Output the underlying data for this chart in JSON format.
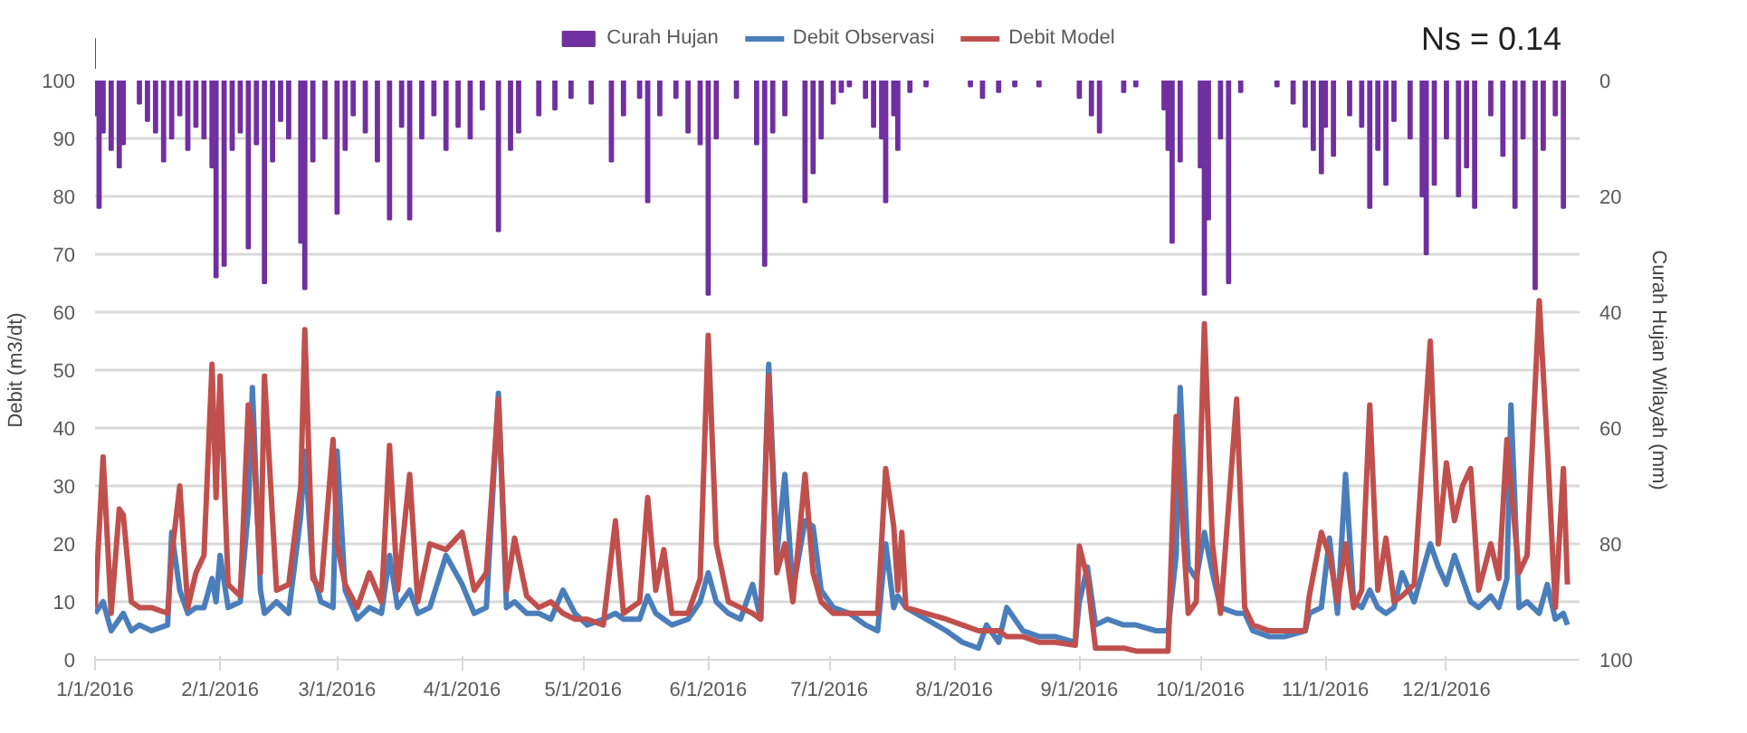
{
  "chart_data": {
    "type": "line",
    "ylabel": "Debit (m3/dt)",
    "y2label": "Curah Hujan Wilayah (mm)",
    "annotations": [
      "Ns = 0.14"
    ],
    "xlim": [
      "2016-01-01",
      "2017-01-03"
    ],
    "xticks": [
      {
        "value": "2016-01-01",
        "label": "1/1/2016"
      },
      {
        "value": "2016-02-01",
        "label": "2/1/2016"
      },
      {
        "value": "2016-03-01",
        "label": "3/1/2016"
      },
      {
        "value": "2016-04-01",
        "label": "4/1/2016"
      },
      {
        "value": "2016-05-01",
        "label": "5/1/2016"
      },
      {
        "value": "2016-06-01",
        "label": "6/1/2016"
      },
      {
        "value": "2016-07-01",
        "label": "7/1/2016"
      },
      {
        "value": "2016-08-01",
        "label": "8/1/2016"
      },
      {
        "value": "2016-09-01",
        "label": "9/1/2016"
      },
      {
        "value": "2016-10-01",
        "label": "10/1/2016"
      },
      {
        "value": "2016-11-01",
        "label": "11/1/2016"
      },
      {
        "value": "2016-12-01",
        "label": "12/1/2016"
      }
    ],
    "ylim": [
      0,
      100
    ],
    "yticks": [
      0,
      10,
      20,
      30,
      40,
      50,
      60,
      70,
      80,
      90,
      100
    ],
    "y2lim": [
      100,
      0
    ],
    "y2ticks": [
      0,
      20,
      40,
      60,
      80,
      100
    ],
    "grid": "y",
    "legend": "top",
    "series": [
      {
        "name": "Curah Hujan",
        "type": "bar",
        "axis": "y2",
        "color": "#7030a0",
        "x": [
          "2016-01-01",
          "2016-01-02",
          "2016-01-03",
          "2016-01-05",
          "2016-01-07",
          "2016-01-08",
          "2016-01-12",
          "2016-01-14",
          "2016-01-16",
          "2016-01-18",
          "2016-01-20",
          "2016-01-22",
          "2016-01-24",
          "2016-01-26",
          "2016-01-28",
          "2016-01-30",
          "2016-01-31",
          "2016-02-02",
          "2016-02-04",
          "2016-02-06",
          "2016-02-08",
          "2016-02-10",
          "2016-02-12",
          "2016-02-14",
          "2016-02-16",
          "2016-02-18",
          "2016-02-21",
          "2016-02-22",
          "2016-02-24",
          "2016-02-27",
          "2016-03-01",
          "2016-03-03",
          "2016-03-05",
          "2016-03-08",
          "2016-03-11",
          "2016-03-14",
          "2016-03-17",
          "2016-03-19",
          "2016-03-22",
          "2016-03-25",
          "2016-03-28",
          "2016-03-31",
          "2016-04-03",
          "2016-04-06",
          "2016-04-10",
          "2016-04-13",
          "2016-04-15",
          "2016-04-20",
          "2016-04-24",
          "2016-04-28",
          "2016-05-03",
          "2016-05-08",
          "2016-05-11",
          "2016-05-15",
          "2016-05-17",
          "2016-05-20",
          "2016-05-24",
          "2016-05-27",
          "2016-05-30",
          "2016-06-01",
          "2016-06-03",
          "2016-06-08",
          "2016-06-13",
          "2016-06-15",
          "2016-06-17",
          "2016-06-20",
          "2016-06-25",
          "2016-06-27",
          "2016-06-29",
          "2016-07-02",
          "2016-07-04",
          "2016-07-06",
          "2016-07-10",
          "2016-07-12",
          "2016-07-14",
          "2016-07-15",
          "2016-07-17",
          "2016-07-18",
          "2016-07-21",
          "2016-07-25",
          "2016-08-05",
          "2016-08-08",
          "2016-08-12",
          "2016-08-16",
          "2016-08-22",
          "2016-09-01",
          "2016-09-04",
          "2016-09-06",
          "2016-09-12",
          "2016-09-15",
          "2016-09-22",
          "2016-09-23",
          "2016-09-24",
          "2016-09-26",
          "2016-10-01",
          "2016-10-02",
          "2016-10-03",
          "2016-10-06",
          "2016-10-08",
          "2016-10-11",
          "2016-10-20",
          "2016-10-24",
          "2016-10-27",
          "2016-10-29",
          "2016-10-31",
          "2016-11-01",
          "2016-11-03",
          "2016-11-07",
          "2016-11-10",
          "2016-11-12",
          "2016-11-14",
          "2016-11-16",
          "2016-11-18",
          "2016-11-22",
          "2016-11-25",
          "2016-11-26",
          "2016-11-28",
          "2016-12-01",
          "2016-12-04",
          "2016-12-06",
          "2016-12-08",
          "2016-12-12",
          "2016-12-15",
          "2016-12-18",
          "2016-12-20",
          "2016-12-23",
          "2016-12-25",
          "2016-12-28",
          "2016-12-30"
        ],
        "values": [
          6,
          22,
          9,
          12,
          15,
          11,
          4,
          7,
          9,
          14,
          10,
          6,
          12,
          8,
          10,
          15,
          34,
          32,
          12,
          9,
          29,
          11,
          35,
          14,
          7,
          10,
          28,
          36,
          14,
          10,
          23,
          12,
          6,
          9,
          14,
          24,
          8,
          24,
          10,
          6,
          12,
          8,
          10,
          5,
          26,
          12,
          9,
          6,
          5,
          3,
          4,
          14,
          6,
          3,
          21,
          6,
          3,
          9,
          11,
          37,
          10,
          3,
          11,
          32,
          9,
          6,
          21,
          16,
          10,
          4,
          2,
          1,
          3,
          8,
          10,
          21,
          6,
          12,
          2,
          1,
          1,
          3,
          2,
          1,
          1,
          3,
          6,
          9,
          2,
          1,
          5,
          12,
          28,
          14,
          15,
          37,
          24,
          10,
          35,
          2,
          1,
          4,
          8,
          12,
          16,
          8,
          13,
          6,
          8,
          22,
          12,
          18,
          7,
          10,
          20,
          30,
          18,
          10,
          20,
          15,
          22,
          6,
          13,
          22,
          10,
          36,
          12,
          6,
          22
        ]
      },
      {
        "name": "Debit Observasi",
        "color": "#4a7ebb",
        "values": [
          8,
          10,
          5,
          7,
          8,
          5,
          6,
          5,
          6,
          22,
          12,
          8,
          9,
          9,
          14,
          10,
          18,
          9,
          10,
          26,
          47,
          12,
          8,
          10,
          8,
          25,
          36,
          15,
          10,
          9,
          36,
          12,
          7,
          9,
          8,
          18,
          9,
          12,
          8,
          9,
          18,
          13,
          8,
          9,
          46,
          9,
          10,
          8,
          8,
          7,
          12,
          8,
          6,
          7,
          8,
          7,
          7,
          11,
          8,
          7,
          6,
          7,
          10,
          15,
          10,
          8,
          7,
          13,
          7,
          51,
          18,
          32,
          12,
          24,
          23,
          12,
          9,
          8,
          6,
          5,
          20,
          9,
          11,
          10,
          9,
          7,
          5,
          3,
          2,
          6,
          3,
          9,
          5,
          4,
          4,
          3,
          10,
          16,
          6,
          7,
          6,
          6,
          5,
          5,
          18,
          47,
          16,
          14,
          22,
          15,
          9,
          8,
          8,
          5,
          4,
          4,
          5,
          8,
          9,
          21,
          8,
          32,
          10,
          9,
          12,
          9,
          8,
          9,
          15,
          10,
          20,
          16,
          13,
          18,
          14,
          10,
          9,
          11,
          9,
          14,
          44,
          9,
          10,
          8,
          13,
          7,
          8,
          6
        ]
      },
      {
        "name": "Debit Model",
        "color": "#c0504d",
        "values": [
          9,
          35,
          8,
          26,
          25,
          10,
          9,
          9,
          8,
          18,
          30,
          9,
          15,
          18,
          51,
          28,
          49,
          13,
          11,
          44,
          40,
          15,
          49,
          12,
          13,
          30,
          57,
          14,
          12,
          38,
          20,
          13,
          9,
          15,
          10,
          37,
          12,
          32,
          10,
          20,
          19,
          22,
          12,
          15,
          45,
          12,
          21,
          11,
          9,
          10,
          8,
          7,
          7,
          6,
          24,
          8,
          10,
          28,
          12,
          19,
          8,
          8,
          14,
          56,
          20,
          10,
          9,
          8,
          7,
          49,
          15,
          20,
          10,
          32,
          15,
          10,
          8,
          8,
          8,
          8,
          33,
          23,
          12,
          22,
          9,
          8,
          7,
          6,
          5,
          5,
          5,
          4,
          4,
          3,
          3,
          2.5,
          19.6,
          14,
          2,
          2,
          2,
          1.5,
          1.5,
          1.5,
          42,
          30,
          8,
          10,
          58,
          20,
          8,
          45,
          9,
          6,
          5,
          5,
          5,
          11,
          22,
          18,
          10,
          20,
          9,
          12,
          44,
          12,
          21,
          10,
          11,
          13,
          55,
          20,
          34,
          24,
          30,
          33,
          12,
          20,
          14,
          38,
          30,
          15,
          18,
          62,
          37,
          9,
          33,
          13
        ]
      }
    ],
    "x": [
      "2016-01-01",
      "2016-01-03",
      "2016-01-05",
      "2016-01-07",
      "2016-01-08",
      "2016-01-10",
      "2016-01-12",
      "2016-01-15",
      "2016-01-19",
      "2016-01-20",
      "2016-01-22",
      "2016-01-24",
      "2016-01-26",
      "2016-01-28",
      "2016-01-30",
      "2016-01-31",
      "2016-02-01",
      "2016-02-03",
      "2016-02-06",
      "2016-02-08",
      "2016-02-09",
      "2016-02-11",
      "2016-02-12",
      "2016-02-15",
      "2016-02-18",
      "2016-02-21",
      "2016-02-22",
      "2016-02-24",
      "2016-02-26",
      "2016-02-29",
      "2016-03-01",
      "2016-03-03",
      "2016-03-06",
      "2016-03-09",
      "2016-03-12",
      "2016-03-14",
      "2016-03-16",
      "2016-03-19",
      "2016-03-21",
      "2016-03-24",
      "2016-03-28",
      "2016-04-01",
      "2016-04-04",
      "2016-04-07",
      "2016-04-10",
      "2016-04-12",
      "2016-04-14",
      "2016-04-17",
      "2016-04-20",
      "2016-04-23",
      "2016-04-26",
      "2016-04-29",
      "2016-05-02",
      "2016-05-06",
      "2016-05-09",
      "2016-05-11",
      "2016-05-15",
      "2016-05-17",
      "2016-05-19",
      "2016-05-21",
      "2016-05-23",
      "2016-05-27",
      "2016-05-30",
      "2016-06-01",
      "2016-06-03",
      "2016-06-06",
      "2016-06-09",
      "2016-06-12",
      "2016-06-14",
      "2016-06-16",
      "2016-06-18",
      "2016-06-20",
      "2016-06-22",
      "2016-06-25",
      "2016-06-27",
      "2016-06-29",
      "2016-07-02",
      "2016-07-06",
      "2016-07-10",
      "2016-07-13",
      "2016-07-15",
      "2016-07-17",
      "2016-07-18",
      "2016-07-19",
      "2016-07-20",
      "2016-07-25",
      "2016-07-30",
      "2016-08-03",
      "2016-08-07",
      "2016-08-09",
      "2016-08-12",
      "2016-08-14",
      "2016-08-18",
      "2016-08-22",
      "2016-08-26",
      "2016-08-31",
      "2016-09-01",
      "2016-09-03",
      "2016-09-05",
      "2016-09-08",
      "2016-09-12",
      "2016-09-15",
      "2016-09-20",
      "2016-09-23",
      "2016-09-25",
      "2016-09-26",
      "2016-09-28",
      "2016-09-30",
      "2016-10-02",
      "2016-10-04",
      "2016-10-06",
      "2016-10-10",
      "2016-10-12",
      "2016-10-14",
      "2016-10-18",
      "2016-10-22",
      "2016-10-27",
      "2016-10-28",
      "2016-10-31",
      "2016-11-02",
      "2016-11-04",
      "2016-11-06",
      "2016-11-08",
      "2016-11-10",
      "2016-11-12",
      "2016-11-14",
      "2016-11-16",
      "2016-11-18",
      "2016-11-20",
      "2016-11-23",
      "2016-11-27",
      "2016-11-29",
      "2016-12-01",
      "2016-12-03",
      "2016-12-05",
      "2016-12-07",
      "2016-12-09",
      "2016-12-12",
      "2016-12-14",
      "2016-12-16",
      "2016-12-17",
      "2016-12-19",
      "2016-12-21",
      "2016-12-24",
      "2016-12-26",
      "2016-12-28",
      "2016-12-30",
      "2016-12-31"
    ]
  }
}
